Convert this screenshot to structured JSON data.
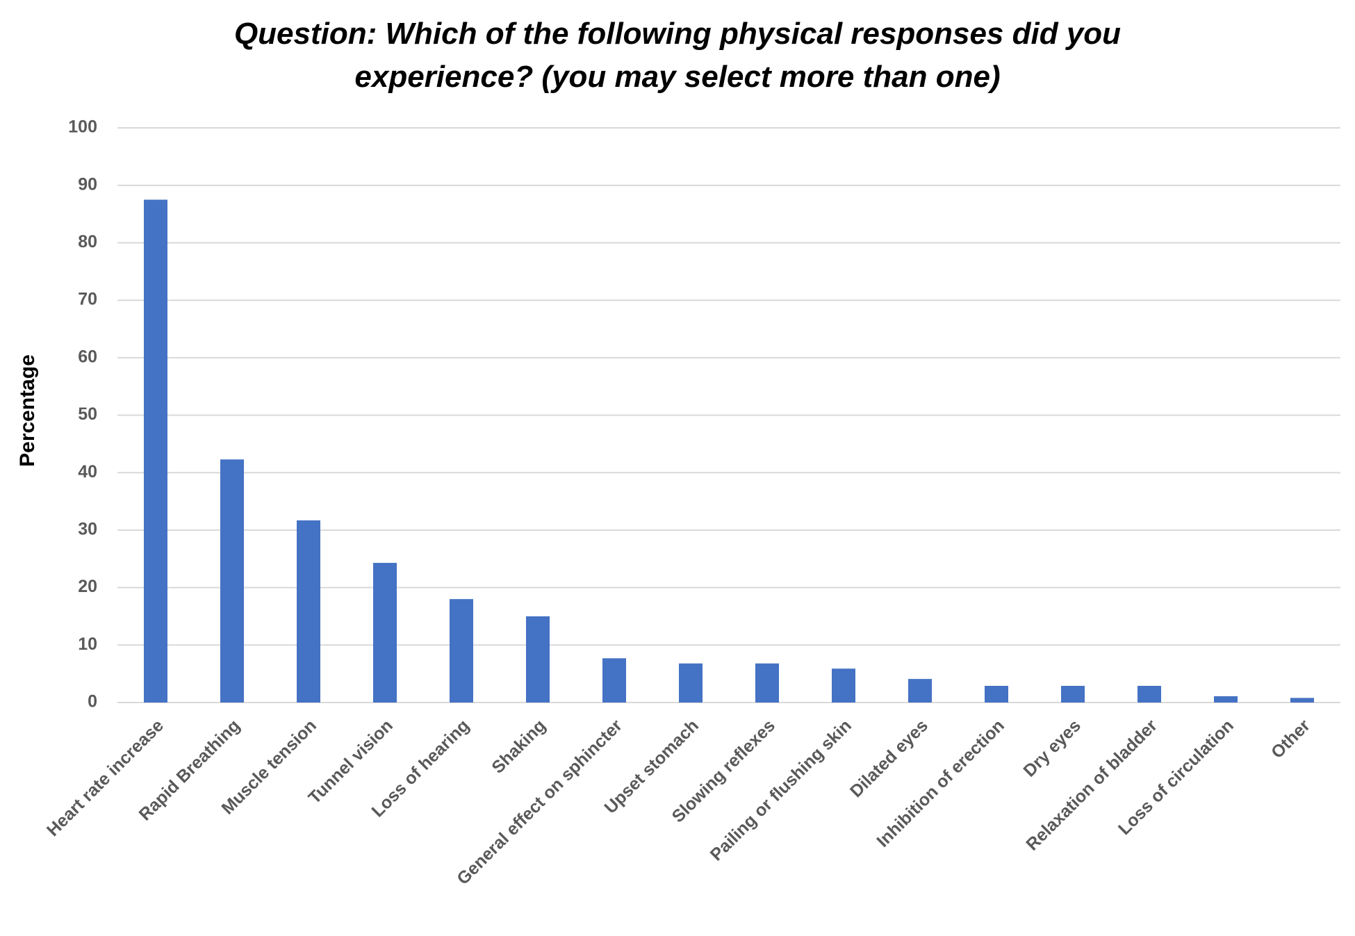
{
  "chart_data": {
    "type": "bar",
    "title": "Question: Which of the following physical responses did you experience? (you may select more than one)",
    "y_label": "Percentage",
    "categories": [
      "Heart rate increase",
      "Rapid Breathing",
      "Muscle tension",
      "Tunnel vision",
      "Loss of hearing",
      "Shaking",
      "General effect on sphincter",
      "Upset stomach",
      "Slowing reflexes",
      "Pailing or flushing skin",
      "Dilated eyes",
      "Inhibition of erection",
      "Dry eyes",
      "Relaxation of bladder",
      "Loss of circulation",
      "Other"
    ],
    "values": [
      87.5,
      42.3,
      31.7,
      24.3,
      18.0,
      15.0,
      7.7,
      6.8,
      6.8,
      5.9,
      4.1,
      2.9,
      2.9,
      2.9,
      1.1,
      0.8
    ],
    "color": "#4472c4",
    "ylim": [
      0,
      100
    ],
    "yticks": [
      0,
      10,
      20,
      30,
      40,
      50,
      60,
      70,
      80,
      90,
      100
    ],
    "grid": true
  }
}
